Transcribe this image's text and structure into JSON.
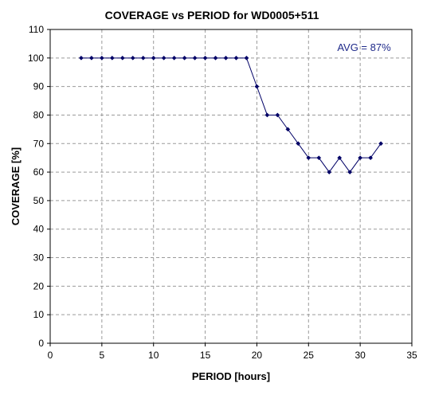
{
  "chart_data": {
    "type": "line",
    "title": "COVERAGE vs PERIOD for WD0005+511",
    "xlabel": "PERIOD [hours]",
    "ylabel": "COVERAGE [%]",
    "xlim": [
      0,
      35
    ],
    "ylim": [
      0,
      110
    ],
    "xticks": [
      0,
      5,
      10,
      15,
      20,
      25,
      30,
      35
    ],
    "yticks": [
      0,
      10,
      20,
      30,
      40,
      50,
      60,
      70,
      80,
      90,
      100,
      110
    ],
    "grid": true,
    "grid_style": "dashed",
    "legend": "none",
    "annotation": "AVG = 87%",
    "series": [
      {
        "x": [
          3,
          4,
          5,
          6,
          7,
          8,
          9,
          10,
          11,
          12,
          13,
          14,
          15,
          16,
          17,
          18,
          19,
          20,
          21,
          22,
          23,
          24,
          25,
          26,
          27,
          28,
          29,
          30,
          31,
          32
        ],
        "values": [
          100,
          100,
          100,
          100,
          100,
          100,
          100,
          100,
          100,
          100,
          100,
          100,
          100,
          100,
          100,
          100,
          100,
          90,
          80,
          80,
          75,
          70,
          65,
          65,
          60,
          65,
          60,
          65,
          65,
          70
        ],
        "color": "#000066",
        "marker": "diamond"
      }
    ]
  }
}
